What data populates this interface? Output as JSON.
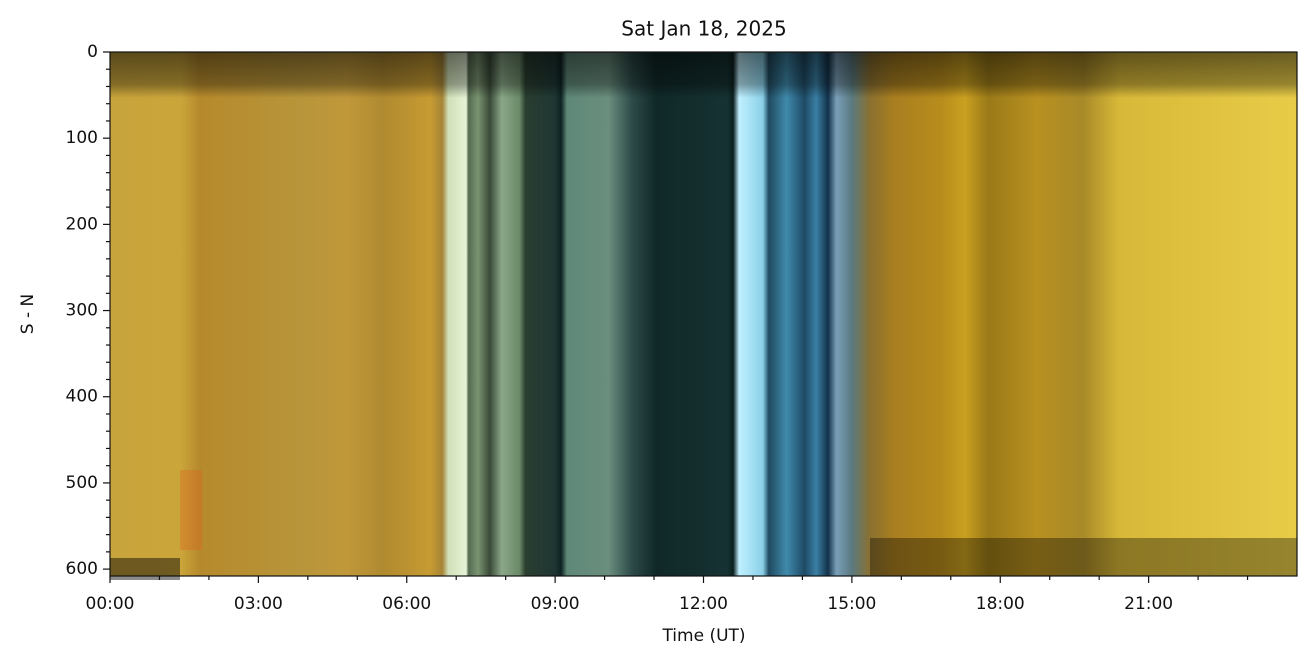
{
  "chart_data": {
    "type": "image",
    "title": "Sat Jan 18, 2025",
    "x_label": "Time (UT)",
    "y_label": "S - N",
    "xlim": [
      0,
      24
    ],
    "ylim": [
      0,
      608
    ],
    "y_inverted": true,
    "xticks": [
      {
        "value": 0,
        "label": "00:00"
      },
      {
        "value": 3,
        "label": "03:00"
      },
      {
        "value": 6,
        "label": "06:00"
      },
      {
        "value": 9,
        "label": "09:00"
      },
      {
        "value": 12,
        "label": "12:00"
      },
      {
        "value": 15,
        "label": "15:00"
      },
      {
        "value": 18,
        "label": "18:00"
      },
      {
        "value": 21,
        "label": "21:00"
      }
    ],
    "xminorticks": [
      1,
      2,
      4,
      5,
      7,
      8,
      10,
      11,
      13,
      14,
      16,
      17,
      19,
      20,
      22,
      23
    ],
    "yticks": [
      0,
      100,
      200,
      300,
      400,
      500,
      600
    ],
    "yminorticks": [
      20,
      40,
      60,
      80,
      120,
      140,
      160,
      180,
      220,
      240,
      260,
      280,
      320,
      340,
      360,
      380,
      420,
      440,
      460,
      480,
      520,
      540,
      560,
      580
    ]
  }
}
